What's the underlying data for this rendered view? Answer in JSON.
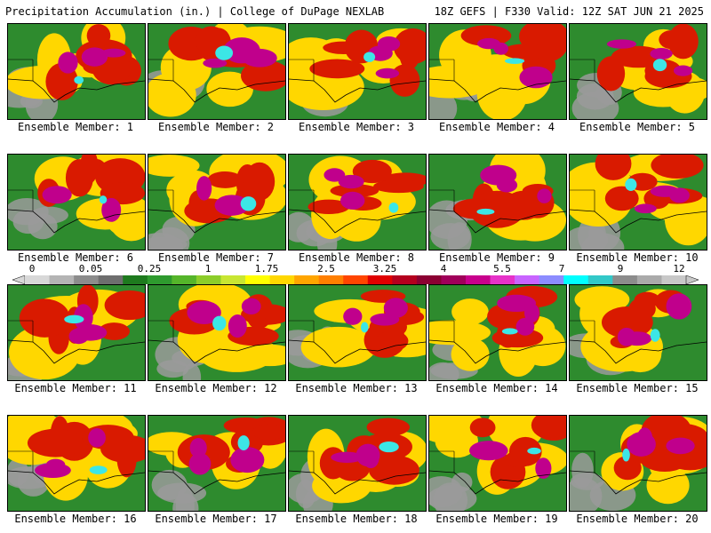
{
  "header": {
    "left": "Precipitation Accumulation (in.) | College of DuPage NEXLAB",
    "right": "18Z GEFS | F330 Valid: 12Z SAT JUN 21 2025"
  },
  "member_label_prefix": "Ensemble Member: ",
  "members": [
    1,
    2,
    3,
    4,
    5,
    6,
    7,
    8,
    9,
    10,
    11,
    12,
    13,
    14,
    15,
    16,
    17,
    18,
    19,
    20
  ],
  "colorbar": {
    "tick_labels": [
      "0",
      "0.05",
      "0.25",
      "1",
      "1.75",
      "2.5",
      "3.25",
      "4",
      "5.5",
      "7",
      "9",
      "12"
    ],
    "colors": [
      "#d8d8d8",
      "#b4b4b4",
      "#8c8c8c",
      "#6e6e6e",
      "#1e7a1e",
      "#2e9a2e",
      "#55b52a",
      "#8ccd2a",
      "#c8e632",
      "#ffff00",
      "#ffd700",
      "#ffa500",
      "#ff7f00",
      "#ff4500",
      "#e00000",
      "#b4001e",
      "#8b0032",
      "#a0005a",
      "#c8008c",
      "#e632c8",
      "#c864ff",
      "#8c8cff",
      "#00ffff",
      "#32c8c8",
      "#8c8c8c",
      "#aaaaaa",
      "#c8c8c8"
    ]
  },
  "legend_colors": {
    "gray": "#9a9a9a",
    "green": "#2e8b2e",
    "yellow": "#ffd700",
    "red": "#d91a00",
    "magenta": "#c0008c",
    "cyan": "#3ce6e6"
  }
}
